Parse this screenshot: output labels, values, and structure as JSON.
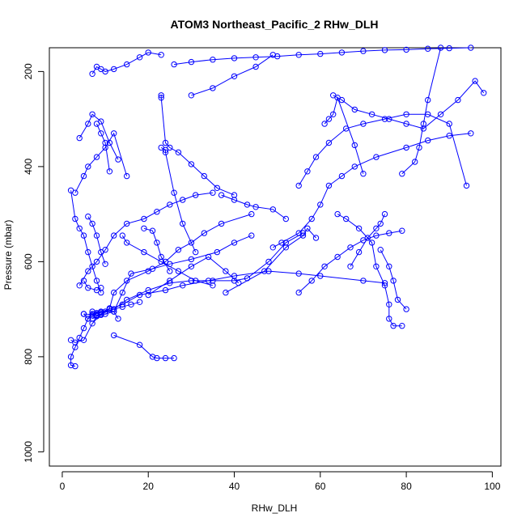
{
  "chart_data": {
    "type": "line",
    "title": "ATOM3 Northeast_Pacific_2 RHw_DLH",
    "xlabel": "RHw_DLH",
    "ylabel": "Pressure (mbar)",
    "xlim": [
      -3,
      102
    ],
    "ylim": [
      1030,
      150
    ],
    "y_reversed": true,
    "x_ticks": [
      0,
      20,
      40,
      60,
      80,
      100
    ],
    "y_ticks": [
      200,
      400,
      600,
      800,
      1000
    ],
    "grid": false,
    "legend": "none",
    "series_color": "#0000ff",
    "marker": "open-circle",
    "series": [
      {
        "x": [
          5,
          8,
          7,
          8,
          9,
          11,
          12,
          15,
          20,
          24,
          27,
          30,
          33,
          37,
          44
        ],
        "y": [
          710,
          712,
          713,
          713,
          710,
          698,
          665,
          640,
          620,
          600,
          575,
          560,
          540,
          520,
          500
        ]
      },
      {
        "x": [
          2,
          3,
          5,
          7,
          9,
          12,
          15,
          20,
          25,
          30,
          35,
          40,
          43,
          48,
          52,
          56
        ],
        "y": [
          765,
          770,
          765,
          730,
          710,
          700,
          680,
          660,
          645,
          640,
          640,
          640,
          635,
          600,
          560,
          540
        ]
      },
      {
        "x": [
          3,
          2,
          2,
          3,
          4,
          5,
          6,
          7,
          8,
          9,
          10,
          12,
          14,
          16,
          18
        ],
        "y": [
          820,
          818,
          800,
          780,
          760,
          740,
          720,
          710,
          708,
          707,
          705,
          700,
          695,
          690,
          685
        ]
      },
      {
        "x": [
          12,
          18,
          21,
          22,
          24,
          26
        ],
        "y": [
          755,
          775,
          800,
          803,
          803,
          803
        ]
      },
      {
        "x": [
          13,
          12,
          14,
          16,
          21,
          25,
          30,
          36,
          40,
          44
        ],
        "y": [
          720,
          705,
          665,
          625,
          615,
          605,
          595,
          580,
          560,
          545
        ]
      },
      {
        "x": [
          5,
          6,
          7,
          9,
          11,
          14,
          18,
          24,
          28,
          34,
          40,
          48,
          55,
          60,
          70,
          75
        ],
        "y": [
          710,
          720,
          705,
          705,
          700,
          690,
          670,
          660,
          650,
          640,
          630,
          620,
          625,
          630,
          640,
          645
        ]
      },
      {
        "x": [
          4,
          6,
          8,
          10,
          12,
          15,
          19,
          22,
          25,
          28,
          31,
          35
        ],
        "y": [
          650,
          620,
          600,
          575,
          545,
          520,
          510,
          495,
          480,
          470,
          460,
          455
        ]
      },
      {
        "x": [
          2,
          3,
          4,
          5,
          6,
          7,
          8,
          9
        ],
        "y": [
          450,
          510,
          530,
          545,
          580,
          610,
          640,
          665
        ]
      },
      {
        "x": [
          3,
          5,
          6,
          8,
          10,
          12,
          15
        ],
        "y": [
          455,
          420,
          400,
          380,
          360,
          330,
          420
        ]
      },
      {
        "x": [
          4,
          6,
          7,
          9,
          11,
          13
        ],
        "y": [
          340,
          310,
          290,
          305,
          350,
          385
        ]
      },
      {
        "x": [
          7,
          8,
          9,
          10,
          12,
          15,
          18,
          20,
          23
        ],
        "y": [
          205,
          190,
          195,
          200,
          195,
          185,
          170,
          160,
          165
        ]
      },
      {
        "x": [
          23,
          23,
          24,
          25,
          27,
          30,
          33,
          36,
          40
        ],
        "y": [
          250,
          255,
          350,
          360,
          370,
          395,
          420,
          445,
          460
        ]
      },
      {
        "x": [
          23,
          24,
          24,
          26,
          28,
          31
        ],
        "y": [
          360,
          365,
          370,
          455,
          520,
          580
        ]
      },
      {
        "x": [
          19,
          21,
          22,
          23,
          25
        ],
        "y": [
          530,
          535,
          560,
          590,
          620
        ]
      },
      {
        "x": [
          14,
          15,
          19,
          23,
          27,
          31,
          35
        ],
        "y": [
          545,
          560,
          580,
          600,
          620,
          640,
          650
        ]
      },
      {
        "x": [
          20,
          25,
          30,
          34,
          38,
          41
        ],
        "y": [
          670,
          640,
          610,
          590,
          620,
          645
        ]
      },
      {
        "x": [
          38,
          47,
          52,
          56,
          57,
          59
        ],
        "y": [
          665,
          620,
          570,
          545,
          530,
          550
        ]
      },
      {
        "x": [
          49,
          51,
          55,
          58,
          60,
          62,
          65,
          68,
          73,
          80,
          85,
          90,
          95
        ],
        "y": [
          570,
          560,
          540,
          510,
          480,
          440,
          420,
          400,
          380,
          360,
          345,
          335,
          330
        ]
      },
      {
        "x": [
          55,
          58,
          61,
          64,
          67,
          70,
          73,
          76,
          79
        ],
        "y": [
          665,
          640,
          610,
          590,
          570,
          555,
          545,
          540,
          535
        ]
      },
      {
        "x": [
          64,
          66,
          69,
          72,
          73,
          75,
          76,
          76,
          77,
          79
        ],
        "y": [
          500,
          510,
          530,
          560,
          610,
          650,
          690,
          720,
          735,
          735
        ]
      },
      {
        "x": [
          67,
          69,
          71,
          73,
          74,
          75
        ],
        "y": [
          610,
          580,
          550,
          530,
          520,
          500
        ]
      },
      {
        "x": [
          74,
          76,
          77,
          78,
          80
        ],
        "y": [
          575,
          610,
          640,
          680,
          700
        ]
      },
      {
        "x": [
          55,
          57,
          59,
          62,
          66,
          70,
          75,
          80,
          85,
          90,
          94
        ],
        "y": [
          440,
          410,
          380,
          350,
          320,
          310,
          300,
          290,
          290,
          310,
          440
        ]
      },
      {
        "x": [
          63,
          65,
          68,
          72,
          76,
          80,
          84,
          88,
          92,
          96,
          98
        ],
        "y": [
          250,
          260,
          280,
          290,
          300,
          310,
          320,
          290,
          260,
          220,
          245
        ]
      },
      {
        "x": [
          79,
          82,
          83,
          84,
          85,
          88
        ],
        "y": [
          415,
          390,
          360,
          310,
          260,
          150
        ]
      },
      {
        "x": [
          61,
          62,
          63,
          64,
          68,
          70
        ],
        "y": [
          310,
          300,
          290,
          255,
          355,
          415
        ]
      },
      {
        "x": [
          37,
          40,
          43,
          45,
          49,
          52
        ],
        "y": [
          460,
          470,
          480,
          485,
          490,
          510
        ]
      },
      {
        "x": [
          30,
          35,
          40,
          45,
          49
        ],
        "y": [
          250,
          235,
          210,
          190,
          165
        ]
      },
      {
        "x": [
          26,
          30,
          35,
          40,
          45,
          50,
          55,
          60,
          65,
          70,
          75,
          80,
          85,
          90,
          95
        ],
        "y": [
          185,
          180,
          175,
          172,
          170,
          168,
          165,
          163,
          160,
          157,
          155,
          154,
          152,
          151,
          150
        ]
      },
      {
        "x": [
          8,
          9,
          10,
          11
        ],
        "y": [
          310,
          330,
          350,
          410
        ]
      },
      {
        "x": [
          6,
          7,
          8,
          9,
          10
        ],
        "y": [
          505,
          520,
          545,
          580,
          605
        ]
      },
      {
        "x": [
          5,
          6,
          8,
          9
        ],
        "y": [
          640,
          655,
          660,
          655
        ]
      },
      {
        "x": [
          7,
          8,
          9,
          10,
          12
        ],
        "y": [
          720,
          715,
          712,
          710,
          705
        ]
      }
    ]
  }
}
